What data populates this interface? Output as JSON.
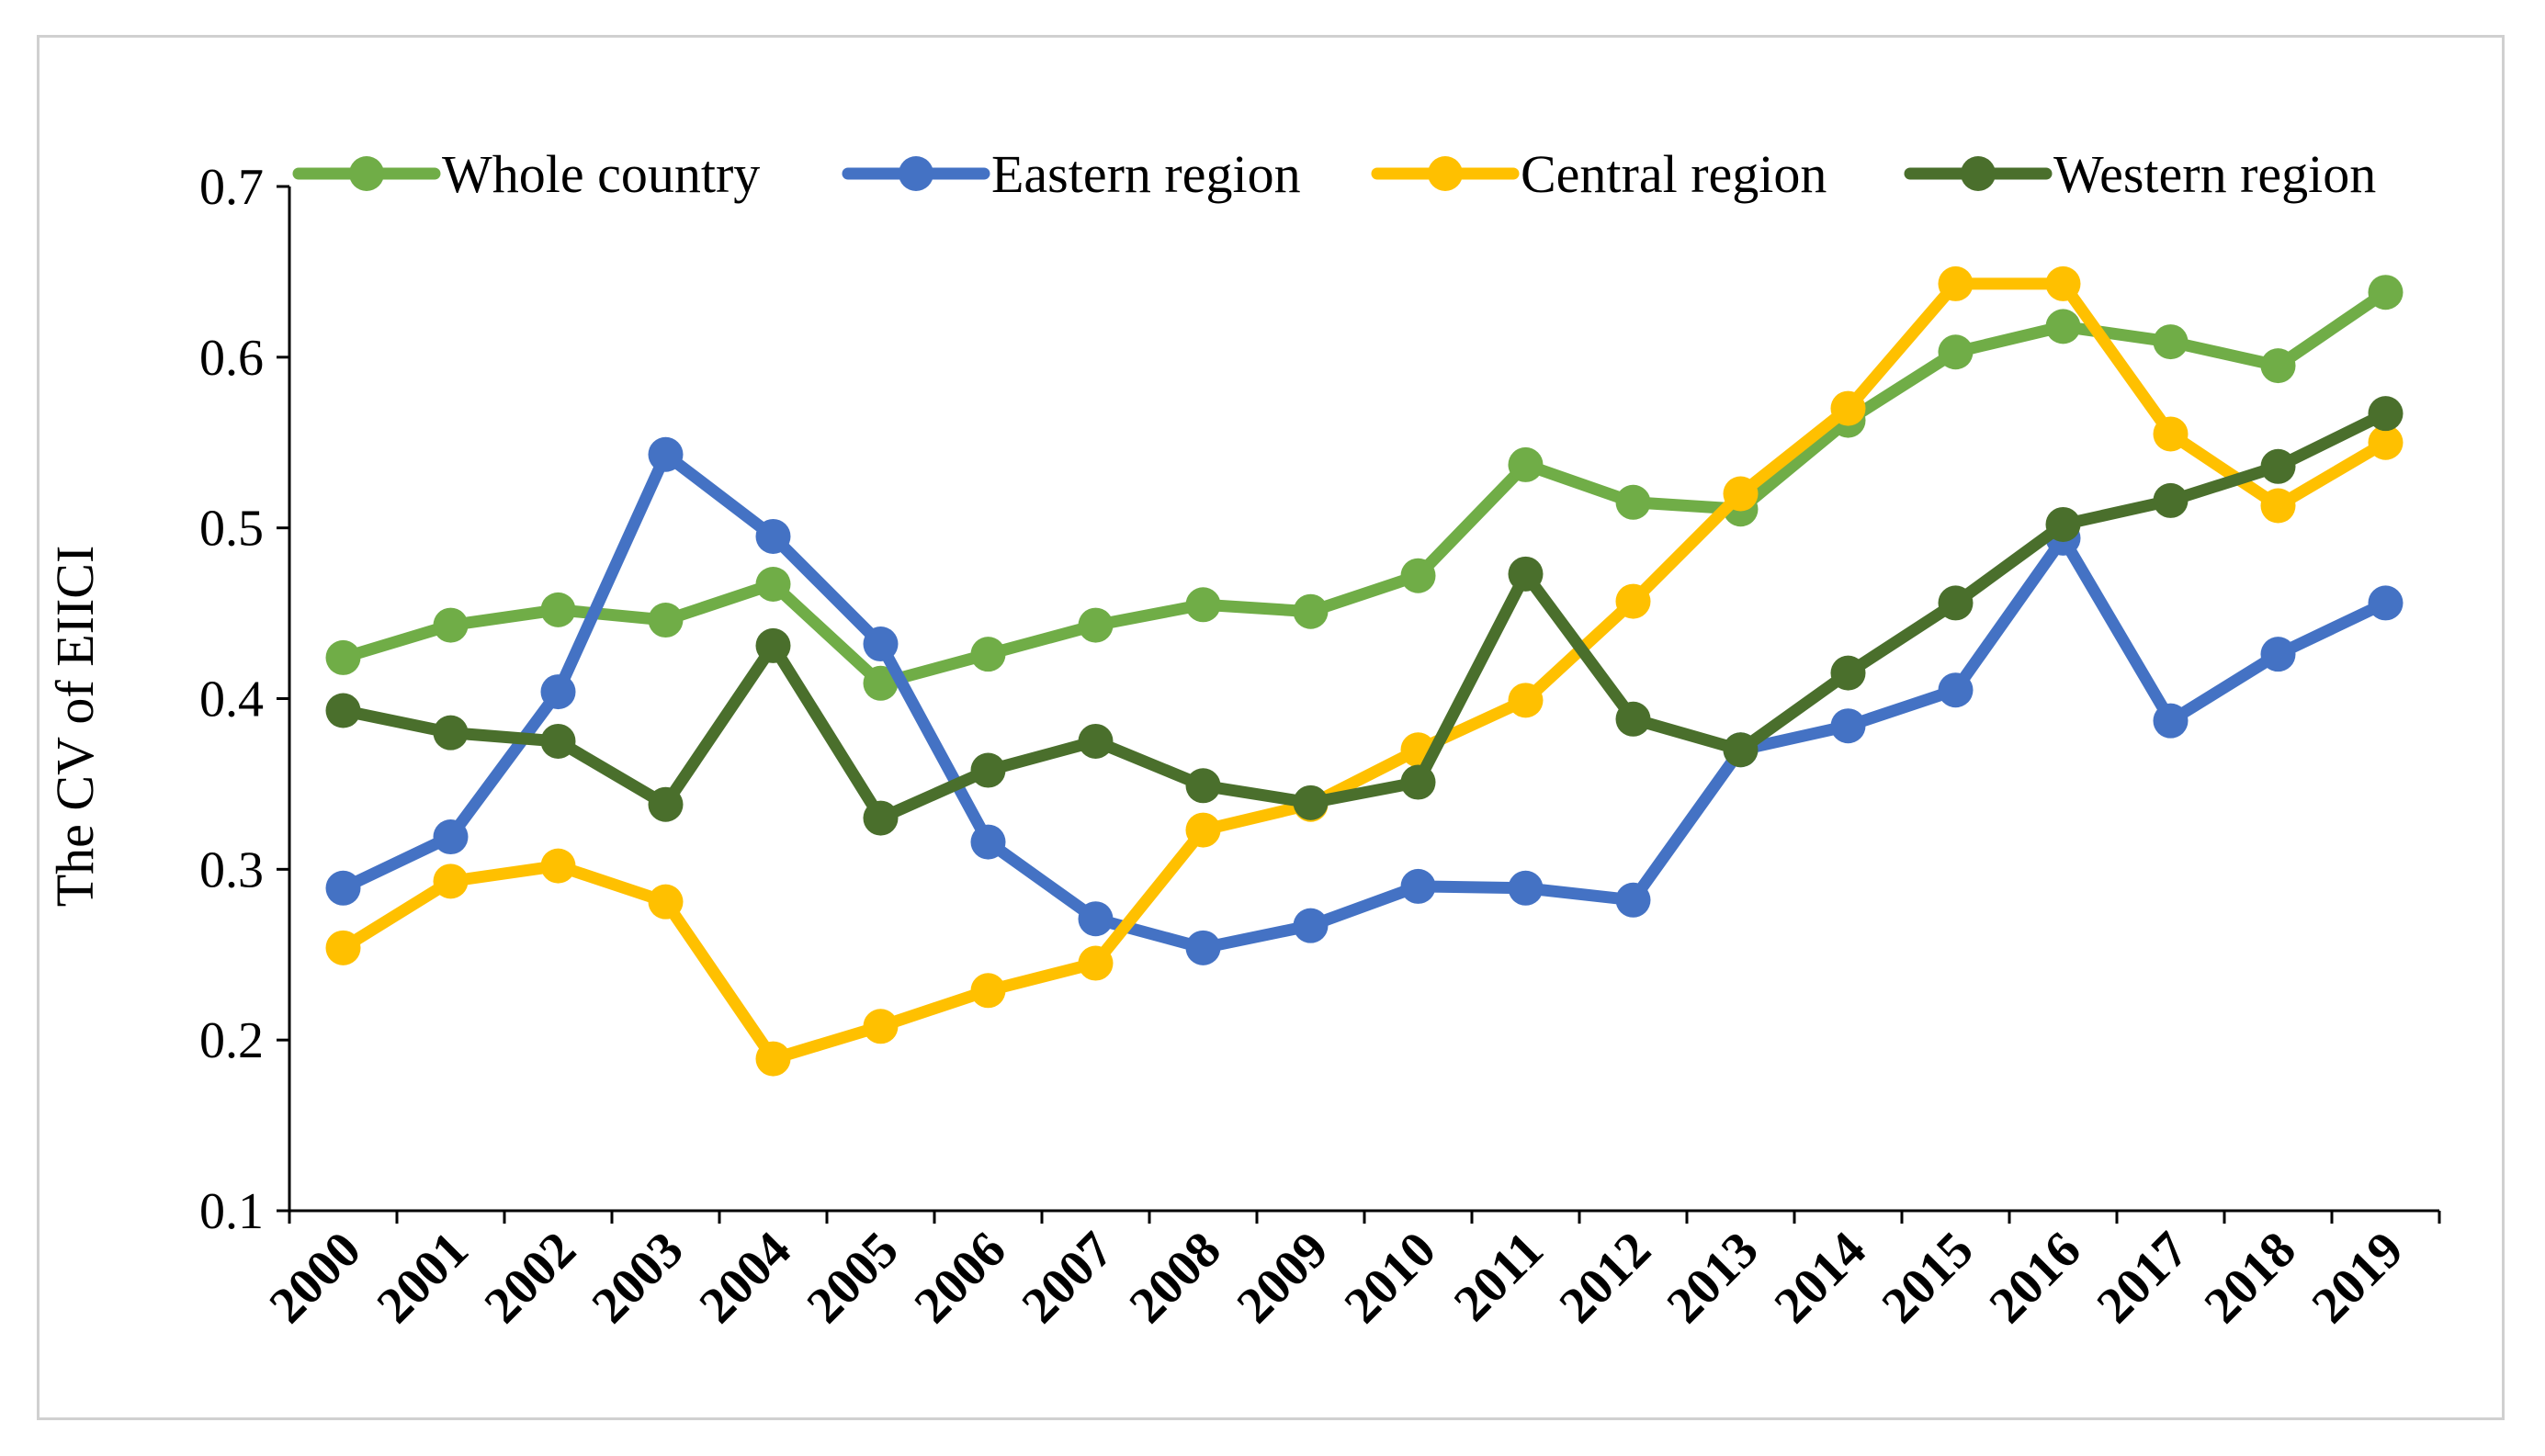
{
  "chart_data": {
    "type": "line",
    "title": "",
    "xlabel": "",
    "ylabel": "The CV of EIICI",
    "ylim": [
      0.1,
      0.7
    ],
    "yticks": [
      "0.1",
      "0.2",
      "0.3",
      "0.4",
      "0.5",
      "0.6",
      "0.7"
    ],
    "legend_position": "top",
    "categories": [
      "2000",
      "2001",
      "2002",
      "2003",
      "2004",
      "2005",
      "2006",
      "2007",
      "2008",
      "2009",
      "2010",
      "2011",
      "2012",
      "2013",
      "2014",
      "2015",
      "2016",
      "2017",
      "2018",
      "2019"
    ],
    "series": [
      {
        "name": "Whole country",
        "color": "#70ad47",
        "values": [
          0.424,
          0.443,
          0.452,
          0.446,
          0.467,
          0.409,
          0.426,
          0.443,
          0.455,
          0.451,
          0.472,
          0.537,
          0.515,
          0.511,
          0.563,
          0.603,
          0.618,
          0.609,
          0.595,
          0.638
        ]
      },
      {
        "name": "Eastern region",
        "color": "#4472c4",
        "values": [
          0.289,
          0.319,
          0.404,
          0.543,
          0.495,
          0.432,
          0.316,
          0.271,
          0.254,
          0.267,
          0.29,
          0.289,
          0.282,
          0.37,
          0.384,
          0.405,
          0.494,
          0.387,
          0.426,
          0.456
        ]
      },
      {
        "name": "Central region",
        "color": "#ffc000",
        "values": [
          0.254,
          0.293,
          0.302,
          0.281,
          0.189,
          0.208,
          0.229,
          0.245,
          0.323,
          0.338,
          0.37,
          0.399,
          0.457,
          0.52,
          0.57,
          0.643,
          0.643,
          0.555,
          0.513,
          0.55
        ]
      },
      {
        "name": "Western region",
        "color": "#4a6f2c",
        "values": [
          0.393,
          0.38,
          0.375,
          0.338,
          0.431,
          0.33,
          0.358,
          0.375,
          0.349,
          0.339,
          0.351,
          0.473,
          0.388,
          0.37,
          0.415,
          0.456,
          0.502,
          0.516,
          0.536,
          0.567
        ]
      }
    ]
  }
}
